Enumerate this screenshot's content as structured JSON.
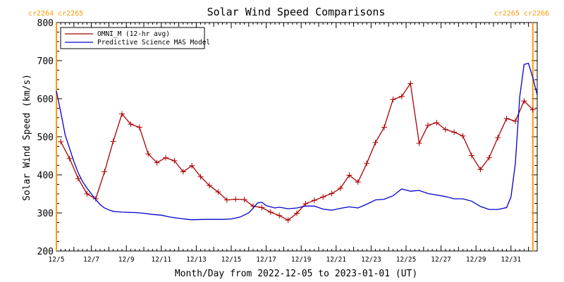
{
  "chart_data": {
    "type": "line",
    "title": "Solar Wind Speed Comparisons",
    "xlabel": "Month/Day from 2022-12-05 to 2023-01-01 (UT)",
    "ylabel": "Solar Wind Speed (km/s)",
    "ylim": [
      200,
      800
    ],
    "yticks": [
      200,
      300,
      400,
      500,
      600,
      700,
      800
    ],
    "xlim": [
      "2022-12-05T00:00",
      "2023-01-01T12:00"
    ],
    "xticks": [
      {
        "date": "2022-12-05",
        "label": "12/5"
      },
      {
        "date": "2022-12-07",
        "label": "12/7"
      },
      {
        "date": "2022-12-09",
        "label": "12/9"
      },
      {
        "date": "2022-12-11",
        "label": "12/11"
      },
      {
        "date": "2022-12-13",
        "label": "12/13"
      },
      {
        "date": "2022-12-15",
        "label": "12/15"
      },
      {
        "date": "2022-12-17",
        "label": "12/17"
      },
      {
        "date": "2022-12-19",
        "label": "12/19"
      },
      {
        "date": "2022-12-21",
        "label": "12/21"
      },
      {
        "date": "2022-12-23",
        "label": "12/23"
      },
      {
        "date": "2022-12-25",
        "label": "12/25"
      },
      {
        "date": "2022-12-27",
        "label": "12/27"
      },
      {
        "date": "2022-12-29",
        "label": "12/29"
      },
      {
        "date": "2022-12-31",
        "label": "12/31"
      }
    ],
    "legend_position": "top-left",
    "carrington_markers": [
      {
        "date": "2022-12-05T00:00",
        "labels": [
          "cr2264",
          "cr2265"
        ]
      },
      {
        "date": "2023-01-01T06:00",
        "labels": [
          "cr2265",
          "cr2266"
        ]
      }
    ],
    "series": [
      {
        "name": "OMNI_M (12-hr avg)",
        "color": "#aa0000",
        "markers": true,
        "points": [
          [
            "2022-12-05T06:00",
            487
          ],
          [
            "2022-12-05T18:00",
            443
          ],
          [
            "2022-12-06T06:00",
            390
          ],
          [
            "2022-12-06T18:00",
            350
          ],
          [
            "2022-12-07T06:00",
            337
          ],
          [
            "2022-12-07T18:00",
            408
          ],
          [
            "2022-12-08T06:00",
            488
          ],
          [
            "2022-12-08T18:00",
            560
          ],
          [
            "2022-12-09T06:00",
            533
          ],
          [
            "2022-12-09T18:00",
            525
          ],
          [
            "2022-12-10T06:00",
            455
          ],
          [
            "2022-12-10T18:00",
            432
          ],
          [
            "2022-12-11T06:00",
            445
          ],
          [
            "2022-12-11T18:00",
            437
          ],
          [
            "2022-12-12T06:00",
            408
          ],
          [
            "2022-12-12T18:00",
            424
          ],
          [
            "2022-12-13T06:00",
            395
          ],
          [
            "2022-12-13T18:00",
            372
          ],
          [
            "2022-12-14T06:00",
            355
          ],
          [
            "2022-12-14T18:00",
            334
          ],
          [
            "2022-12-15T06:00",
            336
          ],
          [
            "2022-12-15T18:00",
            335
          ],
          [
            "2022-12-16T06:00",
            318
          ],
          [
            "2022-12-16T18:00",
            314
          ],
          [
            "2022-12-17T06:00",
            302
          ],
          [
            "2022-12-17T18:00",
            293
          ],
          [
            "2022-12-18T06:00",
            281
          ],
          [
            "2022-12-18T18:00",
            299
          ],
          [
            "2022-12-19T06:00",
            324
          ],
          [
            "2022-12-19T18:00",
            333
          ],
          [
            "2022-12-20T06:00",
            342
          ],
          [
            "2022-12-20T18:00",
            351
          ],
          [
            "2022-12-21T06:00",
            365
          ],
          [
            "2022-12-21T18:00",
            399
          ],
          [
            "2022-12-22T06:00",
            381
          ],
          [
            "2022-12-22T18:00",
            430
          ],
          [
            "2022-12-23T06:00",
            485
          ],
          [
            "2022-12-23T18:00",
            525
          ],
          [
            "2022-12-24T06:00",
            598
          ],
          [
            "2022-12-24T18:00",
            606
          ],
          [
            "2022-12-25T06:00",
            640
          ],
          [
            "2022-12-25T18:00",
            483
          ],
          [
            "2022-12-26T06:00",
            530
          ],
          [
            "2022-12-26T18:00",
            537
          ],
          [
            "2022-12-27T06:00",
            519
          ],
          [
            "2022-12-27T18:00",
            512
          ],
          [
            "2022-12-28T06:00",
            502
          ],
          [
            "2022-12-28T18:00",
            451
          ],
          [
            "2022-12-29T06:00",
            414
          ],
          [
            "2022-12-29T18:00",
            445
          ],
          [
            "2022-12-30T06:00",
            498
          ],
          [
            "2022-12-30T18:00",
            548
          ],
          [
            "2022-12-31T06:00",
            541
          ],
          [
            "2022-12-31T18:00",
            594
          ],
          [
            "2023-01-01T06:00",
            571
          ]
        ]
      },
      {
        "name": "Predictive Science MAS Model",
        "color": "#0000cc",
        "markers": false,
        "points": [
          [
            "2022-12-05T00:00",
            620
          ],
          [
            "2022-12-05T06:00",
            565
          ],
          [
            "2022-12-05T12:00",
            505
          ],
          [
            "2022-12-05T18:00",
            470
          ],
          [
            "2022-12-06T00:00",
            435
          ],
          [
            "2022-12-06T06:00",
            405
          ],
          [
            "2022-12-06T12:00",
            382
          ],
          [
            "2022-12-06T18:00",
            365
          ],
          [
            "2022-12-07T00:00",
            350
          ],
          [
            "2022-12-07T06:00",
            335
          ],
          [
            "2022-12-07T12:00",
            322
          ],
          [
            "2022-12-07T18:00",
            313
          ],
          [
            "2022-12-08T00:00",
            308
          ],
          [
            "2022-12-08T06:00",
            304
          ],
          [
            "2022-12-08T12:00",
            303
          ],
          [
            "2022-12-08T18:00",
            302
          ],
          [
            "2022-12-09T12:00",
            301
          ],
          [
            "2022-12-10T00:00",
            299
          ],
          [
            "2022-12-10T12:00",
            296
          ],
          [
            "2022-12-11T00:00",
            294
          ],
          [
            "2022-12-11T12:00",
            289
          ],
          [
            "2022-12-12T00:00",
            286
          ],
          [
            "2022-12-12T12:00",
            283
          ],
          [
            "2022-12-12T18:00",
            282
          ],
          [
            "2022-12-13T12:00",
            283
          ],
          [
            "2022-12-14T12:00",
            283
          ],
          [
            "2022-12-15T00:00",
            284
          ],
          [
            "2022-12-15T12:00",
            289
          ],
          [
            "2022-12-16T00:00",
            300
          ],
          [
            "2022-12-16T06:00",
            312
          ],
          [
            "2022-12-16T12:00",
            326
          ],
          [
            "2022-12-16T18:00",
            328
          ],
          [
            "2022-12-17T00:00",
            319
          ],
          [
            "2022-12-17T06:00",
            316
          ],
          [
            "2022-12-17T12:00",
            313
          ],
          [
            "2022-12-17T18:00",
            315
          ],
          [
            "2022-12-18T06:00",
            311
          ],
          [
            "2022-12-18T18:00",
            313
          ],
          [
            "2022-12-19T06:00",
            318
          ],
          [
            "2022-12-19T18:00",
            318
          ],
          [
            "2022-12-20T06:00",
            310
          ],
          [
            "2022-12-20T18:00",
            307
          ],
          [
            "2022-12-21T06:00",
            312
          ],
          [
            "2022-12-21T18:00",
            316
          ],
          [
            "2022-12-22T06:00",
            313
          ],
          [
            "2022-12-22T18:00",
            323
          ],
          [
            "2022-12-23T06:00",
            334
          ],
          [
            "2022-12-23T18:00",
            336
          ],
          [
            "2022-12-24T06:00",
            345
          ],
          [
            "2022-12-24T18:00",
            363
          ],
          [
            "2022-12-25T06:00",
            357
          ],
          [
            "2022-12-25T18:00",
            359
          ],
          [
            "2022-12-26T06:00",
            351
          ],
          [
            "2022-12-26T18:00",
            347
          ],
          [
            "2022-12-27T06:00",
            343
          ],
          [
            "2022-12-27T18:00",
            337
          ],
          [
            "2022-12-28T06:00",
            337
          ],
          [
            "2022-12-28T18:00",
            331
          ],
          [
            "2022-12-29T06:00",
            317
          ],
          [
            "2022-12-29T18:00",
            309
          ],
          [
            "2022-12-30T06:00",
            309
          ],
          [
            "2022-12-30T18:00",
            314
          ],
          [
            "2022-12-31T00:00",
            342
          ],
          [
            "2022-12-31T06:00",
            430
          ],
          [
            "2022-12-31T12:00",
            605
          ],
          [
            "2022-12-31T18:00",
            690
          ],
          [
            "2023-01-01T00:00",
            693
          ],
          [
            "2023-01-01T06:00",
            655
          ],
          [
            "2023-01-01T12:00",
            610
          ]
        ]
      }
    ]
  },
  "colors": {
    "background": "#ffffff",
    "axes": "#000000",
    "carrington_marker": "#ff9900",
    "omni": "#aa0000",
    "model": "#0000cc"
  }
}
